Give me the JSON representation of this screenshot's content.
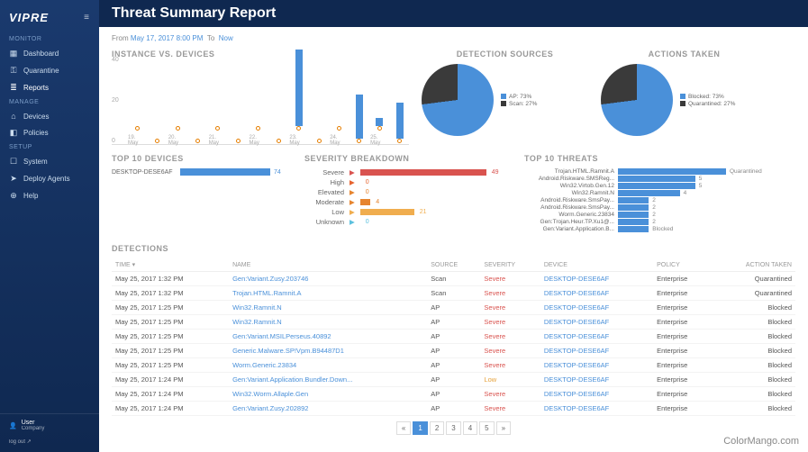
{
  "brand": "VIPRE",
  "page_title": "Threat Summary Report",
  "date_range": {
    "from_label": "From",
    "from": "May 17, 2017 8:00 PM",
    "to_label": "To",
    "to": "Now"
  },
  "sidebar": {
    "sections": [
      {
        "label": "MONITOR",
        "items": [
          {
            "icon": "▦",
            "label": "Dashboard",
            "name": "sidebar-item-dashboard"
          },
          {
            "icon": "⚿",
            "label": "Quarantine",
            "name": "sidebar-item-quarantine"
          },
          {
            "icon": "≣",
            "label": "Reports",
            "name": "sidebar-item-reports",
            "active": true
          }
        ]
      },
      {
        "label": "MANAGE",
        "items": [
          {
            "icon": "⌂",
            "label": "Devices",
            "name": "sidebar-item-devices"
          },
          {
            "icon": "◧",
            "label": "Policies",
            "name": "sidebar-item-policies"
          }
        ]
      },
      {
        "label": "SETUP",
        "items": [
          {
            "icon": "☐",
            "label": "System",
            "name": "sidebar-item-system"
          },
          {
            "icon": "➤",
            "label": "Deploy Agents",
            "name": "sidebar-item-deploy"
          },
          {
            "icon": "⊕",
            "label": "Help",
            "name": "sidebar-item-help"
          }
        ]
      }
    ],
    "user": {
      "name": "User",
      "role": "Company",
      "logout": "log out ↗"
    }
  },
  "instance_chart": {
    "title": "INSTANCE VS. DEVICES",
    "yticks": [
      0,
      20,
      40
    ],
    "ymax": 40,
    "xlabels": [
      "19. May",
      "20. May",
      "21. May",
      "22. May",
      "23. May",
      "24. May",
      "25. May"
    ],
    "bars": [
      0,
      0,
      0,
      0,
      0,
      0,
      0,
      0,
      38,
      0,
      0,
      22,
      4,
      18
    ],
    "line_dots": 14,
    "bar_color": "#4a90d9",
    "line_color": "#e67e00"
  },
  "detection_sources": {
    "title": "DETECTION SOURCES",
    "slices": [
      {
        "label": "AP",
        "pct": 73,
        "color": "#4a90d9"
      },
      {
        "label": "Scan",
        "pct": 27,
        "color": "#3a3a3a"
      }
    ]
  },
  "actions_taken": {
    "title": "ACTIONS TAKEN",
    "slices": [
      {
        "label": "Blocked",
        "pct": 73,
        "color": "#4a90d9"
      },
      {
        "label": "Quarantined",
        "pct": 27,
        "color": "#3a3a3a"
      }
    ]
  },
  "top_devices": {
    "title": "TOP 10 DEVICES",
    "rows": [
      {
        "name": "DESKTOP-DESE6AF",
        "value": 74,
        "max": 74,
        "color": "#4a90d9"
      }
    ]
  },
  "severity": {
    "title": "SEVERITY BREAKDOWN",
    "rows": [
      {
        "label": "Severe",
        "value": 49,
        "color": "#d9534f"
      },
      {
        "label": "High",
        "value": 0,
        "color": "#e6632e"
      },
      {
        "label": "Elevated",
        "value": 0,
        "color": "#e6842e"
      },
      {
        "label": "Moderate",
        "value": 4,
        "color": "#e6842e"
      },
      {
        "label": "Low",
        "value": 21,
        "color": "#f0ad4e"
      },
      {
        "label": "Unknown",
        "value": 0,
        "color": "#5bc0de"
      }
    ],
    "max": 49
  },
  "top_threats": {
    "title": "TOP 10 THREATS",
    "rows": [
      {
        "label": "Trojan.HTML.Ramnit.A",
        "value": 7
      },
      {
        "label": "Android.Riskware.SMSReg...",
        "value": 5
      },
      {
        "label": "Win32.Virtob.Gen.12",
        "value": 5
      },
      {
        "label": "Win32.Ramnit.N",
        "value": 4
      },
      {
        "label": "Android.Riskware.SmsPay...",
        "value": 2
      },
      {
        "label": "Android.Riskware.SmsPay...",
        "value": 2
      },
      {
        "label": "Worm.Generic.23834",
        "value": 2
      },
      {
        "label": "Gen:Trojan.Heur.TP.Xu1@...",
        "value": 2
      },
      {
        "label": "Gen:Variant.Application.B...",
        "value": 2
      }
    ],
    "max": 7,
    "labels": {
      "7": "7",
      "5": "5",
      "4": "4",
      "2": "2",
      "q": "Quarantined",
      "b": "Blocked"
    }
  },
  "detections": {
    "title": "DETECTIONS",
    "columns": [
      "TIME ▾",
      "NAME",
      "SOURCE",
      "SEVERITY",
      "DEVICE",
      "POLICY",
      "ACTION TAKEN"
    ],
    "rows": [
      {
        "time": "May 25, 2017 1:32 PM",
        "name": "Gen:Variant.Zusy.203746",
        "source": "Scan",
        "severity": "Severe",
        "sev_class": "sev-severe",
        "device": "DESKTOP-DESE6AF",
        "policy": "Enterprise",
        "action": "Quarantined"
      },
      {
        "time": "May 25, 2017 1:32 PM",
        "name": "Trojan.HTML.Ramnit.A",
        "source": "Scan",
        "severity": "Severe",
        "sev_class": "sev-severe",
        "device": "DESKTOP-DESE6AF",
        "policy": "Enterprise",
        "action": "Quarantined"
      },
      {
        "time": "May 25, 2017 1:25 PM",
        "name": "Win32.Ramnit.N",
        "source": "AP",
        "severity": "Severe",
        "sev_class": "sev-severe",
        "device": "DESKTOP-DESE6AF",
        "policy": "Enterprise",
        "action": "Blocked"
      },
      {
        "time": "May 25, 2017 1:25 PM",
        "name": "Win32.Ramnit.N",
        "source": "AP",
        "severity": "Severe",
        "sev_class": "sev-severe",
        "device": "DESKTOP-DESE6AF",
        "policy": "Enterprise",
        "action": "Blocked"
      },
      {
        "time": "May 25, 2017 1:25 PM",
        "name": "Gen:Variant.MSILPerseus.40892",
        "source": "AP",
        "severity": "Severe",
        "sev_class": "sev-severe",
        "device": "DESKTOP-DESE6AF",
        "policy": "Enterprise",
        "action": "Blocked"
      },
      {
        "time": "May 25, 2017 1:25 PM",
        "name": "Generic.Malware.SP!Vpm.B94487D1",
        "source": "AP",
        "severity": "Severe",
        "sev_class": "sev-severe",
        "device": "DESKTOP-DESE6AF",
        "policy": "Enterprise",
        "action": "Blocked"
      },
      {
        "time": "May 25, 2017 1:25 PM",
        "name": "Worm.Generic.23834",
        "source": "AP",
        "severity": "Severe",
        "sev_class": "sev-severe",
        "device": "DESKTOP-DESE6AF",
        "policy": "Enterprise",
        "action": "Blocked"
      },
      {
        "time": "May 25, 2017 1:24 PM",
        "name": "Gen:Variant.Application.Bundler.Down...",
        "source": "AP",
        "severity": "Low",
        "sev_class": "sev-low",
        "device": "DESKTOP-DESE6AF",
        "policy": "Enterprise",
        "action": "Blocked"
      },
      {
        "time": "May 25, 2017 1:24 PM",
        "name": "Win32.Worm.Allaple.Gen",
        "source": "AP",
        "severity": "Severe",
        "sev_class": "sev-severe",
        "device": "DESKTOP-DESE6AF",
        "policy": "Enterprise",
        "action": "Blocked"
      },
      {
        "time": "May 25, 2017 1:24 PM",
        "name": "Gen:Variant.Zusy.202892",
        "source": "AP",
        "severity": "Severe",
        "sev_class": "sev-severe",
        "device": "DESKTOP-DESE6AF",
        "policy": "Enterprise",
        "action": "Blocked"
      }
    ],
    "pages": [
      "«",
      "1",
      "2",
      "3",
      "4",
      "5",
      "»"
    ],
    "active_page": 1
  },
  "watermark": "ColorMango.com"
}
